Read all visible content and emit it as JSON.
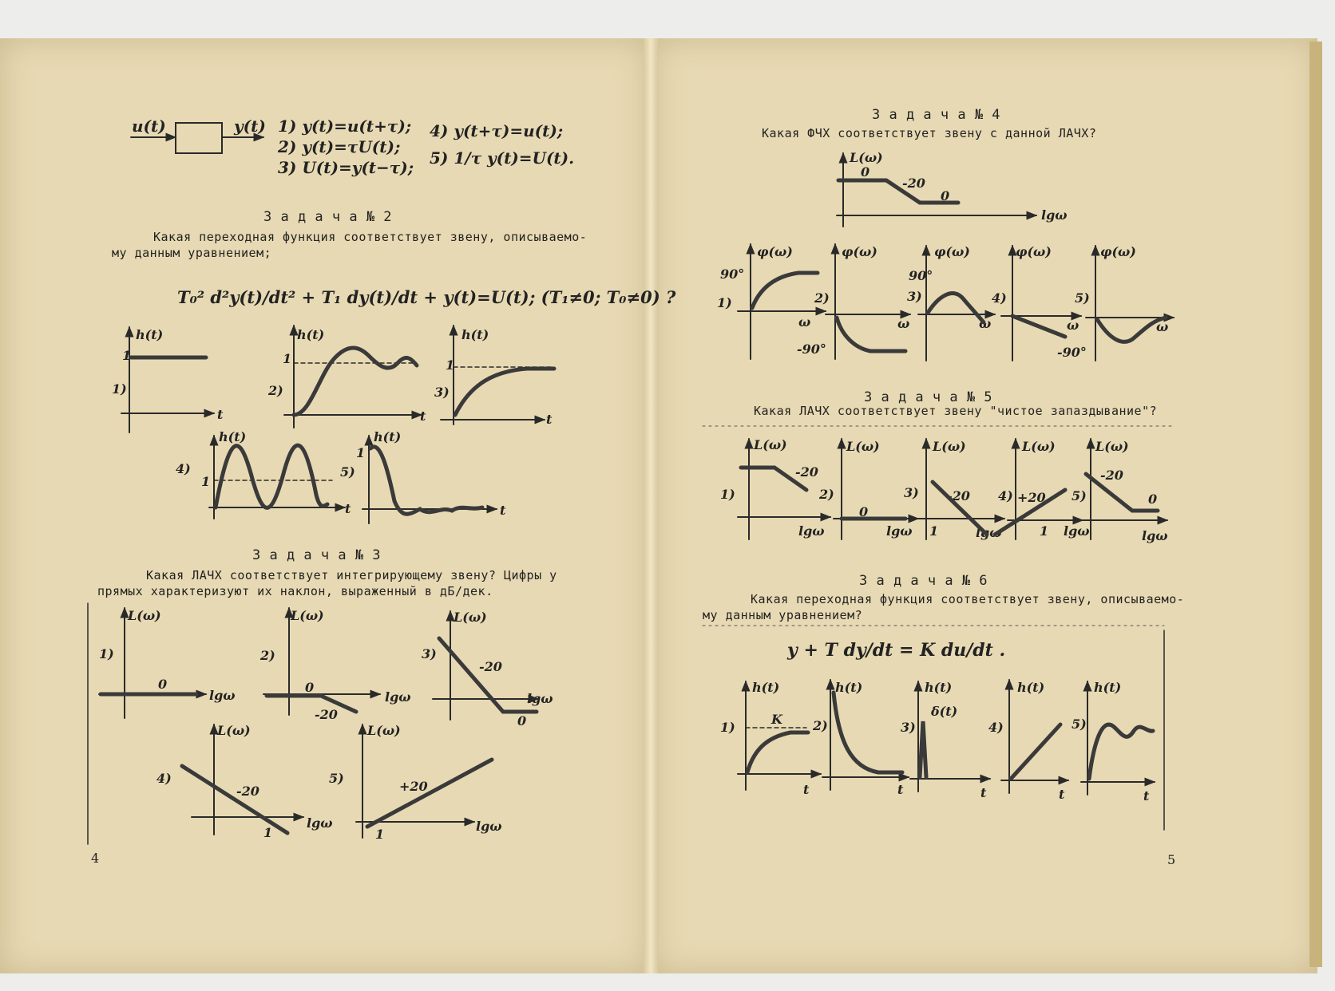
{
  "left": {
    "block": {
      "input": "u(t)",
      "output": "y(t)"
    },
    "z1_options": [
      "1) y(t)=u(t+τ);",
      "2) y(t)=τU(t);",
      "3) U(t)=y(t−τ);",
      "4) y(t+τ)=u(t);",
      "5) 1/τ y(t)=U(t)."
    ],
    "z2": {
      "title": "З а д а ч а  № 2",
      "q1": "Какая переходная функция соответствует звену, описываемо-",
      "q2": "му данным уравнением;",
      "eq": "T₀² d²y(t)/dt² + T₁ dy(t)/dt + y(t)=U(t);   (T₁≠0; T₀≠0) ?",
      "ht": "h(t)",
      "t": "t",
      "one": "1",
      "labels": [
        "1)",
        "2)",
        "3)",
        "4)",
        "5)"
      ]
    },
    "z3": {
      "title": "З а д а ч а  № 3",
      "q1": "Какая ЛАЧХ соответствует интегрирующему звену? Цифры у",
      "q2": "прямых характеризуют их наклон, выраженный в дБ/дек.",
      "L": "L(ω)",
      "lgw": "lgω",
      "labels": [
        "1)",
        "2)",
        "3)",
        "4)",
        "5)"
      ],
      "slopes": [
        "0",
        "0",
        "-20",
        "-20",
        "-20",
        "0",
        "-20",
        "+20"
      ],
      "one": "1"
    },
    "page_number": "4"
  },
  "right": {
    "z4": {
      "title": "З а д а ч а  № 4",
      "q": "Какая ФЧХ соответствует звену с данной ЛАЧХ?",
      "L": "L(ω)",
      "lgw": "lgω",
      "slopes": [
        "0",
        "-20",
        "0"
      ],
      "phi": "φ(ω)",
      "w": "ω",
      "deg90": "90°",
      "degm90": "-90°",
      "labels": [
        "1)",
        "2)",
        "3)",
        "4)",
        "5)"
      ]
    },
    "z5": {
      "title": "З а д а ч а  № 5",
      "q": "Какая ЛАЧХ соответствует звену \"чистое запаздывание\"?",
      "L": "L(ω)",
      "lgw": "lgω",
      "labels": [
        "1)",
        "2)",
        "3)",
        "4)",
        "5)"
      ],
      "slopes": [
        "-20",
        "0",
        "-20",
        "+20",
        "-20",
        "0"
      ],
      "one": "1"
    },
    "z6": {
      "title": "З а д а ч а  № 6",
      "q1": "Какая переходная функция соответствует звену, описываемо-",
      "q2": "му данным уравнением?",
      "eq": "y + T dy/dt = K du/dt .",
      "ht": "h(t)",
      "t": "t",
      "k": "K",
      "delta": "δ(t)",
      "labels": [
        "1)",
        "2)",
        "3)",
        "4)",
        "5)"
      ]
    },
    "page_number": "5"
  }
}
